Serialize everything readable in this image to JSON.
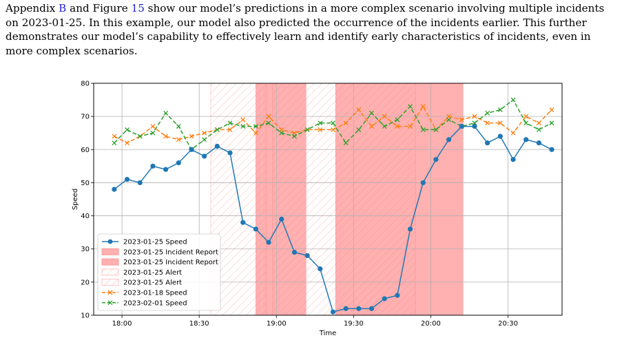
{
  "paragraph": {
    "lines": [
      [
        {
          "t": "Appendix "
        },
        {
          "t": "B",
          "ref": true
        },
        {
          "t": " and Figure "
        },
        {
          "t": "15",
          "ref": true
        },
        {
          "t": " show our model’s predictions in a more complex scenario involving multiple incidents"
        }
      ],
      [
        {
          "t": "on 2023-01-25. In this example, our model also predicted the occurrence of the incidents earlier. This further"
        }
      ],
      [
        {
          "t": "demonstrates our model’s capability to effectively learn and identify early characteristics of incidents, even in"
        }
      ],
      [
        {
          "t": "more complex scenarios."
        }
      ]
    ]
  },
  "chart_data": {
    "type": "line",
    "xlabel": "Time",
    "ylabel": "Speed",
    "ylim": [
      10,
      80
    ],
    "yticks": [
      10,
      20,
      30,
      40,
      50,
      60,
      70,
      80
    ],
    "xlim_minutes": [
      1069,
      1251
    ],
    "xticks": [
      {
        "label": "18:00",
        "minutes": 1080
      },
      {
        "label": "18:30",
        "minutes": 1110
      },
      {
        "label": "19:00",
        "minutes": 1140
      },
      {
        "label": "19:30",
        "minutes": 1170
      },
      {
        "label": "20:00",
        "minutes": 1200
      },
      {
        "label": "20:30",
        "minutes": 1230
      }
    ],
    "grid": true,
    "legend_position": "lower-left",
    "x_minutes": [
      1077,
      1082,
      1087,
      1092,
      1097,
      1102,
      1107,
      1112,
      1117,
      1122,
      1127,
      1132,
      1137,
      1142,
      1147,
      1152,
      1157,
      1162,
      1167,
      1172,
      1177,
      1182,
      1187,
      1192,
      1197,
      1202,
      1207,
      1212,
      1217,
      1222,
      1227,
      1232,
      1237,
      1242,
      1247
    ],
    "series": [
      {
        "name": "2023-01-25 Speed",
        "color": "#1f77b4",
        "marker": "circle",
        "values": [
          48,
          51,
          50,
          55,
          54,
          56,
          60,
          58,
          61,
          59,
          38,
          36,
          32,
          39,
          29,
          28,
          24,
          11,
          12,
          12,
          12,
          15,
          16,
          36,
          50,
          57,
          63,
          67,
          67,
          62,
          64,
          57,
          63,
          62,
          60
        ]
      },
      {
        "name": "2023-01-18 Speed",
        "color": "#ff7f0e",
        "marker": "x",
        "values": [
          64,
          62,
          64,
          67,
          64,
          63,
          64,
          65,
          66,
          66,
          69,
          65,
          70,
          66,
          65,
          66,
          66,
          66,
          68,
          72,
          67,
          70,
          67,
          67,
          73,
          66,
          70,
          69,
          70,
          68,
          68,
          65,
          70,
          68,
          72
        ]
      },
      {
        "name": "2023-02-01 Speed",
        "color": "#2ca02c",
        "marker": "x",
        "values": [
          62,
          66,
          64,
          65,
          71,
          67,
          60,
          63,
          66,
          68,
          67,
          67,
          68,
          65,
          64,
          66,
          68,
          68,
          62,
          66,
          71,
          67,
          69,
          73,
          66,
          66,
          69,
          67,
          68,
          71,
          72,
          75,
          68,
          66,
          68
        ]
      }
    ],
    "incident_reports": [
      {
        "name": "2023-01-25 Incident Report",
        "start_minutes": 1132,
        "end_minutes": 1151.5
      },
      {
        "name": "2023-01-25 Incident Report",
        "start_minutes": 1163,
        "end_minutes": 1212.5
      }
    ],
    "alerts": [
      {
        "name": "2023-01-25 Alert",
        "start_minutes": 1114.5,
        "end_minutes": 1136
      },
      {
        "name": "2023-01-25 Alert",
        "start_minutes": 1138.5,
        "end_minutes": 1194
      }
    ],
    "colors": {
      "incident_fill": "#ff9a9a",
      "alert_hatch": "#ff8080"
    },
    "legend_entries": [
      {
        "label": "2023-01-25 Speed",
        "kind": "line-circle",
        "color": "#1f77b4"
      },
      {
        "label": "2023-01-25 Incident Report",
        "kind": "patch",
        "color": "#ff9a9a"
      },
      {
        "label": "2023-01-25 Incident Report",
        "kind": "patch",
        "color": "#ff9a9a"
      },
      {
        "label": "2023-01-25 Alert",
        "kind": "hatch",
        "color": "#ff8080"
      },
      {
        "label": "2023-01-25 Alert",
        "kind": "hatch",
        "color": "#ff8080"
      },
      {
        "label": "2023-01-18 Speed",
        "kind": "dash-x",
        "color": "#ff7f0e"
      },
      {
        "label": "2023-02-01 Speed",
        "kind": "dash-x",
        "color": "#2ca02c"
      }
    ]
  }
}
